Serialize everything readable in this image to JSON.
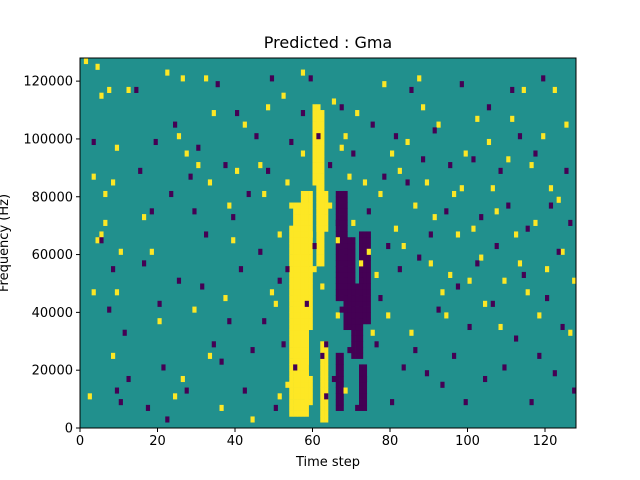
{
  "chart_data": {
    "type": "heatmap",
    "title": "Predicted : Gma",
    "xlabel": "Time step",
    "ylabel": "Frequency (Hz)",
    "xlim": [
      0,
      128
    ],
    "ylim": [
      0,
      128000
    ],
    "x_ticks": [
      0,
      20,
      40,
      60,
      80,
      100,
      120
    ],
    "y_ticks": [
      0,
      20000,
      40000,
      60000,
      80000,
      100000,
      120000
    ],
    "y_tick_labels": [
      "0",
      "20000",
      "40000",
      "60000",
      "80000",
      "100000",
      "120000"
    ],
    "grid": false,
    "legend": "none",
    "grid_size": {
      "cols": 128,
      "rows": 64
    },
    "colors": {
      "background": "#21908d",
      "high": "#fde725",
      "low": "#440154"
    },
    "cell_value_legend": {
      "background": 0,
      "high": 1,
      "low": -1
    },
    "high_cells": [
      [
        1,
        63
      ],
      [
        2,
        5
      ],
      [
        3,
        43
      ],
      [
        3,
        23
      ],
      [
        4,
        32
      ],
      [
        4,
        62
      ],
      [
        5,
        57
      ],
      [
        5,
        33
      ],
      [
        6,
        40
      ],
      [
        6,
        35
      ],
      [
        7,
        58
      ],
      [
        8,
        42
      ],
      [
        8,
        12
      ],
      [
        9,
        48
      ],
      [
        9,
        23
      ],
      [
        10,
        30
      ],
      [
        12,
        58
      ],
      [
        16,
        36
      ],
      [
        18,
        30
      ],
      [
        20,
        18
      ],
      [
        22,
        61
      ],
      [
        24,
        5
      ],
      [
        25,
        50
      ],
      [
        26,
        60
      ],
      [
        26,
        8
      ],
      [
        27,
        47
      ],
      [
        29,
        20
      ],
      [
        30,
        45
      ],
      [
        32,
        60
      ],
      [
        33,
        42
      ],
      [
        33,
        12
      ],
      [
        34,
        54
      ],
      [
        36,
        3
      ],
      [
        37,
        22
      ],
      [
        38,
        38
      ],
      [
        39,
        32
      ],
      [
        40,
        44
      ],
      [
        42,
        52
      ],
      [
        44,
        1
      ],
      [
        46,
        45
      ],
      [
        47,
        40
      ],
      [
        48,
        55
      ],
      [
        49,
        23
      ],
      [
        50,
        21
      ],
      [
        51,
        33
      ],
      [
        51,
        5
      ],
      [
        52,
        57
      ],
      [
        53,
        42
      ],
      [
        53,
        7
      ],
      [
        54,
        38
      ],
      [
        55,
        34
      ],
      [
        55,
        22
      ],
      [
        56,
        12
      ],
      [
        56,
        29
      ],
      [
        57,
        47
      ],
      [
        57,
        61
      ],
      [
        58,
        17
      ],
      [
        58,
        9
      ],
      [
        59,
        33
      ],
      [
        60,
        44
      ],
      [
        60,
        27
      ],
      [
        61,
        53
      ],
      [
        61,
        41
      ],
      [
        62,
        24
      ],
      [
        62,
        39
      ],
      [
        64,
        38
      ],
      [
        65,
        56
      ],
      [
        66,
        19
      ],
      [
        66,
        32
      ],
      [
        67,
        48
      ],
      [
        68,
        50
      ],
      [
        68,
        6
      ],
      [
        69,
        43
      ],
      [
        70,
        35
      ],
      [
        71,
        54
      ],
      [
        72,
        28
      ],
      [
        73,
        42
      ],
      [
        74,
        30
      ],
      [
        75,
        16
      ],
      [
        76,
        26
      ],
      [
        77,
        40
      ],
      [
        78,
        59
      ],
      [
        79,
        19
      ],
      [
        80,
        47
      ],
      [
        81,
        34
      ],
      [
        82,
        44
      ],
      [
        83,
        31
      ],
      [
        84,
        49
      ],
      [
        85,
        16
      ],
      [
        86,
        38
      ],
      [
        87,
        60
      ],
      [
        88,
        55
      ],
      [
        89,
        42
      ],
      [
        90,
        28
      ],
      [
        91,
        36
      ],
      [
        92,
        52
      ],
      [
        93,
        23
      ],
      [
        94,
        19
      ],
      [
        95,
        26
      ],
      [
        96,
        40
      ],
      [
        97,
        33
      ],
      [
        98,
        41
      ],
      [
        99,
        47
      ],
      [
        100,
        25
      ],
      [
        101,
        34
      ],
      [
        102,
        53
      ],
      [
        103,
        29
      ],
      [
        104,
        21
      ],
      [
        105,
        49
      ],
      [
        106,
        41
      ],
      [
        107,
        37
      ],
      [
        108,
        17
      ],
      [
        109,
        25
      ],
      [
        110,
        46
      ],
      [
        111,
        53
      ],
      [
        112,
        33
      ],
      [
        113,
        28
      ],
      [
        114,
        58
      ],
      [
        115,
        23
      ],
      [
        116,
        45
      ],
      [
        117,
        35
      ],
      [
        118,
        19
      ],
      [
        119,
        50
      ],
      [
        120,
        27
      ],
      [
        121,
        41
      ],
      [
        122,
        58
      ],
      [
        123,
        39
      ],
      [
        124,
        30
      ],
      [
        125,
        52
      ],
      [
        126,
        16
      ],
      [
        127,
        25
      ]
    ],
    "low_cells": [
      [
        3,
        49
      ],
      [
        5,
        32
      ],
      [
        7,
        20
      ],
      [
        8,
        27
      ],
      [
        9,
        6
      ],
      [
        10,
        4
      ],
      [
        11,
        16
      ],
      [
        12,
        8
      ],
      [
        14,
        58
      ],
      [
        15,
        44
      ],
      [
        16,
        28
      ],
      [
        17,
        3
      ],
      [
        18,
        37
      ],
      [
        19,
        49
      ],
      [
        20,
        21
      ],
      [
        21,
        10
      ],
      [
        22,
        1
      ],
      [
        23,
        40
      ],
      [
        24,
        52
      ],
      [
        25,
        25
      ],
      [
        27,
        6
      ],
      [
        28,
        43
      ],
      [
        29,
        37
      ],
      [
        30,
        48
      ],
      [
        31,
        24
      ],
      [
        32,
        33
      ],
      [
        34,
        14
      ],
      [
        35,
        59
      ],
      [
        36,
        11
      ],
      [
        37,
        45
      ],
      [
        38,
        18
      ],
      [
        39,
        36
      ],
      [
        40,
        54
      ],
      [
        41,
        27
      ],
      [
        42,
        6
      ],
      [
        43,
        40
      ],
      [
        44,
        13
      ],
      [
        45,
        50
      ],
      [
        46,
        30
      ],
      [
        47,
        18
      ],
      [
        48,
        44
      ],
      [
        49,
        60
      ],
      [
        50,
        3
      ],
      [
        51,
        25
      ],
      [
        52,
        14
      ],
      [
        53,
        27
      ],
      [
        54,
        49
      ],
      [
        55,
        10
      ],
      [
        57,
        54
      ],
      [
        58,
        21
      ],
      [
        59,
        60
      ],
      [
        60,
        31
      ],
      [
        61,
        50
      ],
      [
        62,
        12
      ],
      [
        63,
        14
      ],
      [
        63,
        5
      ],
      [
        64,
        45
      ],
      [
        65,
        8
      ],
      [
        66,
        35
      ],
      [
        67,
        55
      ],
      [
        67,
        20
      ],
      [
        68,
        30
      ],
      [
        69,
        13
      ],
      [
        70,
        47
      ],
      [
        71,
        3
      ],
      [
        72,
        25
      ],
      [
        73,
        8
      ],
      [
        74,
        37
      ],
      [
        75,
        52
      ],
      [
        76,
        14
      ],
      [
        77,
        22
      ],
      [
        78,
        43
      ],
      [
        79,
        31
      ],
      [
        80,
        4
      ],
      [
        81,
        50
      ],
      [
        82,
        27
      ],
      [
        83,
        10
      ],
      [
        84,
        42
      ],
      [
        85,
        58
      ],
      [
        86,
        13
      ],
      [
        87,
        29
      ],
      [
        88,
        46
      ],
      [
        89,
        9
      ],
      [
        90,
        33
      ],
      [
        91,
        51
      ],
      [
        92,
        20
      ],
      [
        93,
        7
      ],
      [
        94,
        37
      ],
      [
        95,
        45
      ],
      [
        96,
        12
      ],
      [
        97,
        24
      ],
      [
        98,
        59
      ],
      [
        99,
        4
      ],
      [
        100,
        17
      ],
      [
        101,
        46
      ],
      [
        102,
        28
      ],
      [
        103,
        36
      ],
      [
        104,
        8
      ],
      [
        105,
        55
      ],
      [
        106,
        21
      ],
      [
        107,
        31
      ],
      [
        108,
        44
      ],
      [
        109,
        10
      ],
      [
        110,
        38
      ],
      [
        111,
        58
      ],
      [
        112,
        15
      ],
      [
        113,
        50
      ],
      [
        114,
        26
      ],
      [
        115,
        34
      ],
      [
        116,
        4
      ],
      [
        117,
        47
      ],
      [
        118,
        12
      ],
      [
        119,
        60
      ],
      [
        120,
        22
      ],
      [
        121,
        38
      ],
      [
        122,
        9
      ],
      [
        123,
        30
      ],
      [
        124,
        17
      ],
      [
        125,
        44
      ],
      [
        126,
        35
      ],
      [
        127,
        6
      ]
    ],
    "high_blocks": [
      {
        "x": [
          54,
          58
        ],
        "y": [
          2,
          34
        ]
      },
      {
        "x": [
          55,
          58
        ],
        "y": [
          11,
          38
        ]
      },
      {
        "x": [
          57,
          59
        ],
        "y": [
          17,
          40
        ]
      },
      {
        "x": [
          58,
          59
        ],
        "y": [
          4,
          8
        ]
      },
      {
        "x": [
          60,
          61
        ],
        "y": [
          42,
          55
        ]
      },
      {
        "x": [
          61,
          62
        ],
        "y": [
          28,
          54
        ]
      },
      {
        "x": [
          62,
          63
        ],
        "y": [
          1,
          14
        ]
      },
      {
        "x": [
          61,
          63
        ],
        "y": [
          34,
          40
        ]
      }
    ],
    "low_blocks": [
      {
        "x": [
          66,
          68
        ],
        "y": [
          22,
          40
        ]
      },
      {
        "x": [
          68,
          70
        ],
        "y": [
          17,
          32
        ]
      },
      {
        "x": [
          70,
          72
        ],
        "y": [
          12,
          24
        ]
      },
      {
        "x": [
          72,
          74
        ],
        "y": [
          18,
          33
        ]
      },
      {
        "x": [
          66,
          67
        ],
        "y": [
          3,
          12
        ]
      },
      {
        "x": [
          72,
          73
        ],
        "y": [
          3,
          10
        ]
      }
    ]
  }
}
